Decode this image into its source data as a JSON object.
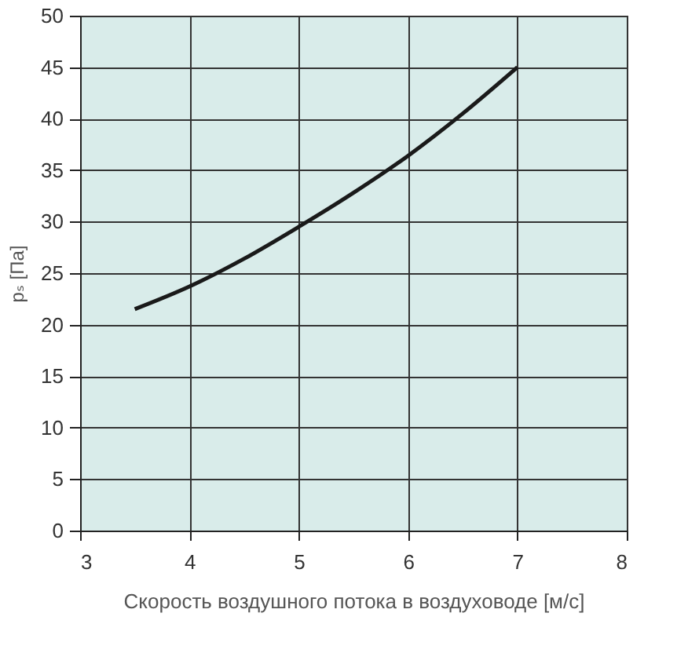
{
  "chart_data": {
    "type": "line",
    "xlabel": "Скорость воздушного потока в воздуховоде [м/с]",
    "ylabel": "pₛ [Па]",
    "x": [
      3.5,
      4,
      4.5,
      5,
      5.5,
      6,
      6.5,
      7
    ],
    "series": [
      {
        "color": "#1a1a1a",
        "values": [
          21.5,
          23.7,
          26.4,
          29.5,
          32.8,
          36.4,
          40.5,
          45
        ]
      }
    ],
    "xlim": [
      3,
      8
    ],
    "xticks": [
      3,
      4,
      5,
      6,
      7,
      8
    ],
    "ylim": [
      0,
      50
    ],
    "yticks": [
      0,
      5,
      10,
      15,
      20,
      25,
      30,
      35,
      40,
      45,
      50
    ],
    "grid": true,
    "legend": false,
    "marker": "none",
    "line_style": "solid"
  }
}
